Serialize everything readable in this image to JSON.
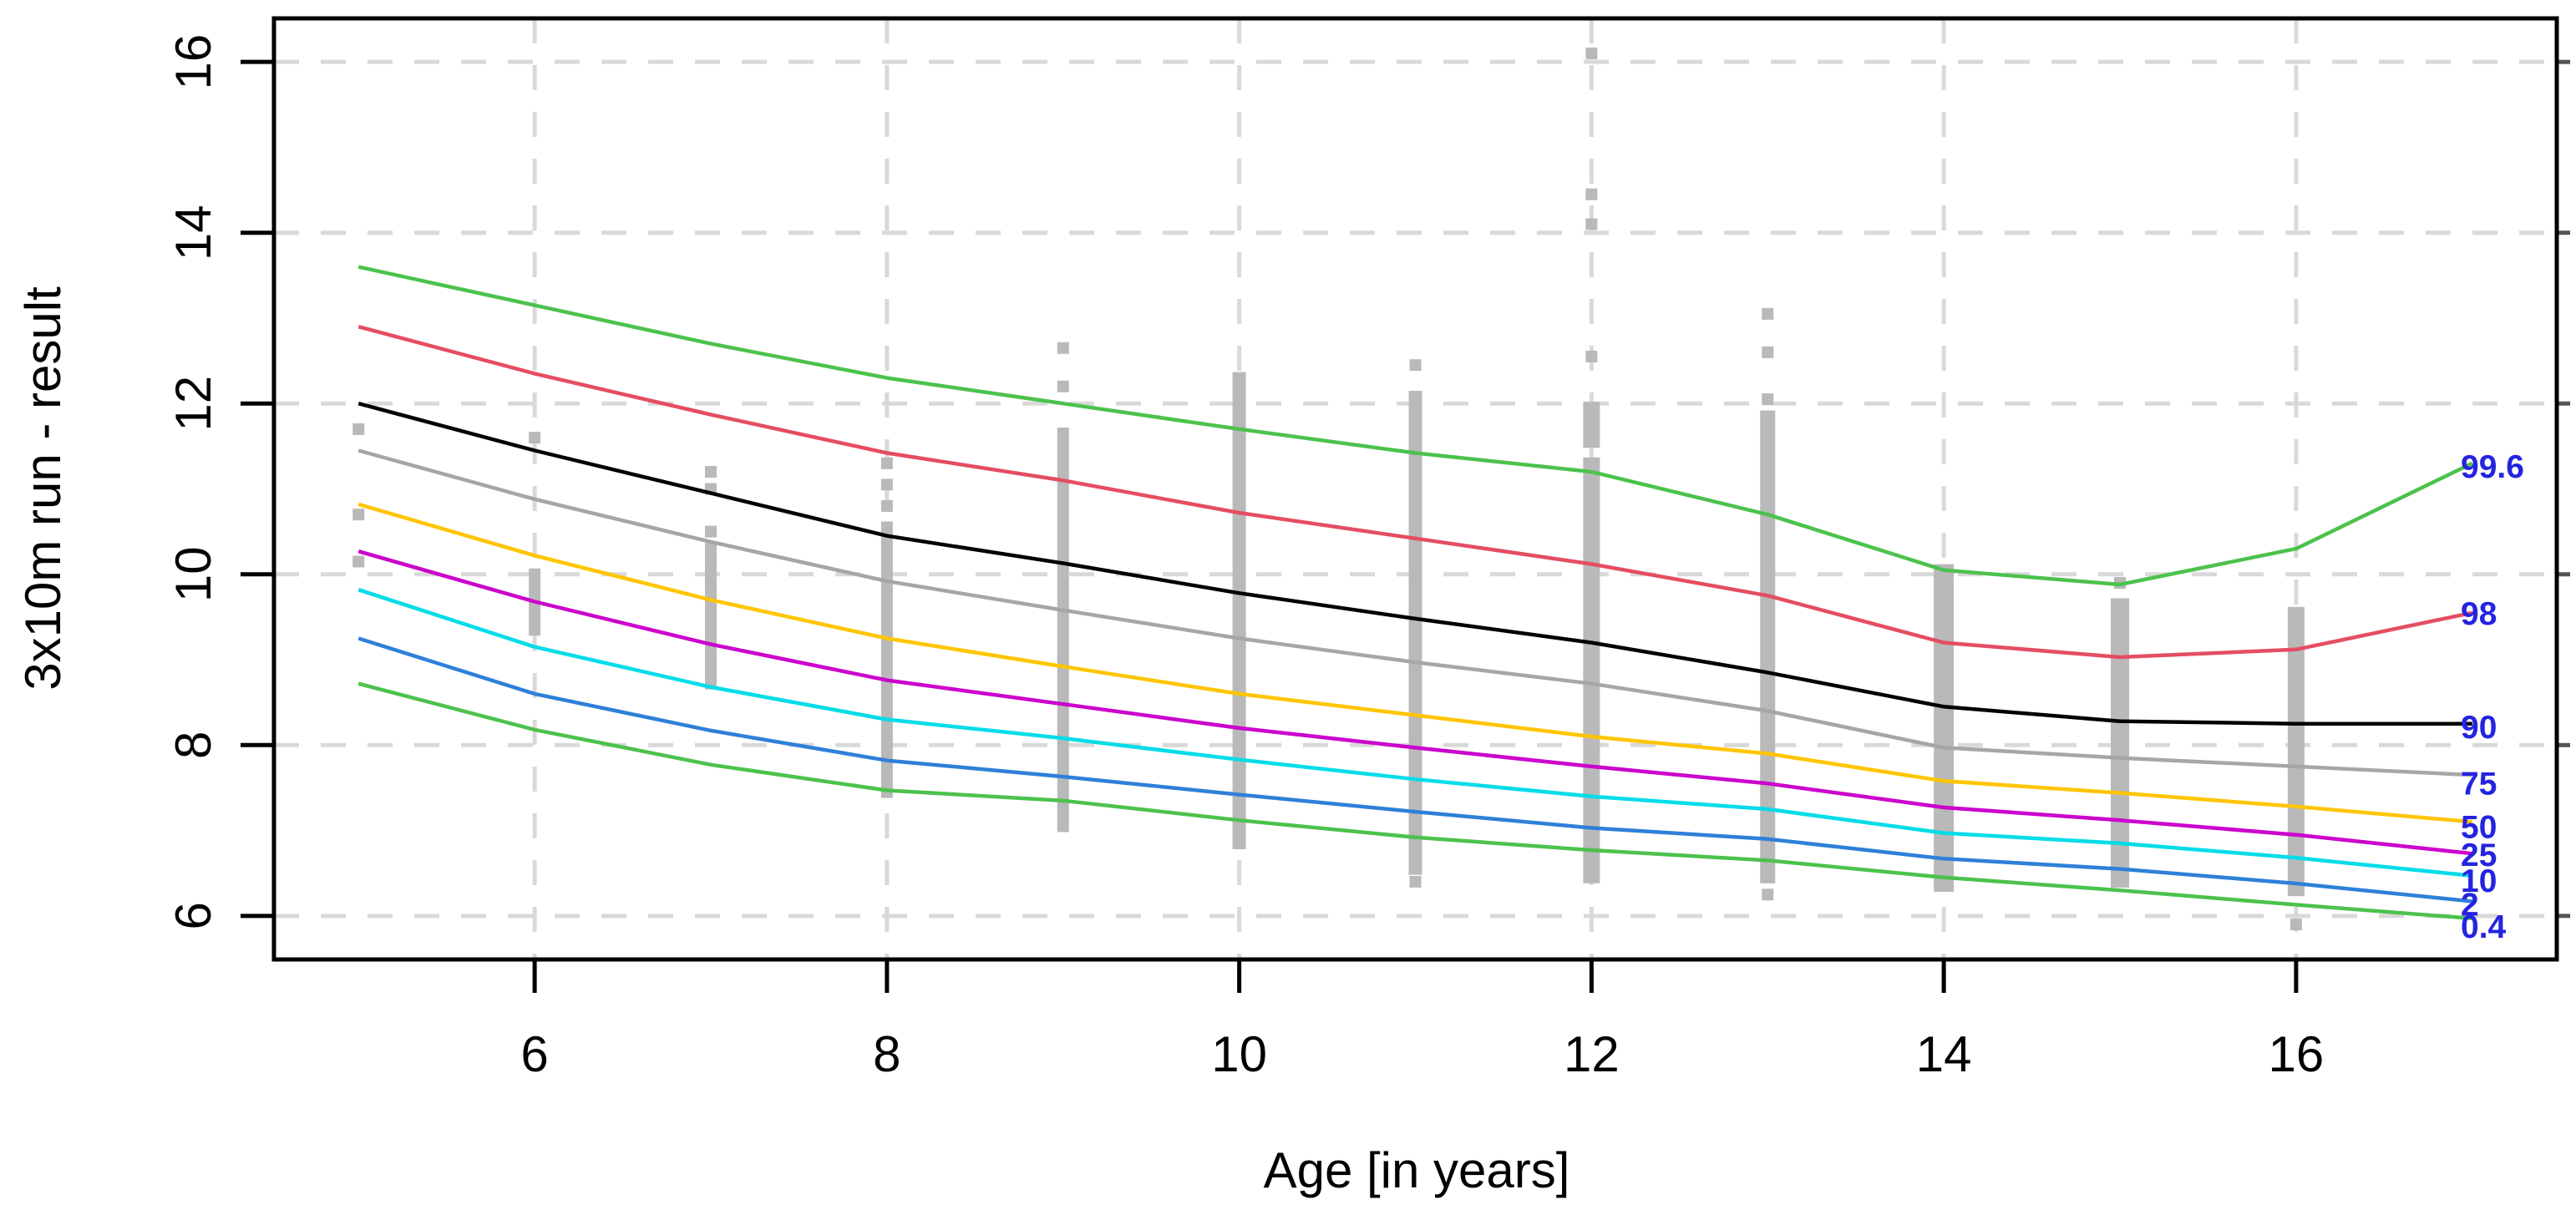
{
  "page": {
    "background": "#ffffff"
  },
  "chart_data": {
    "type": "line",
    "subtype": "growth-centile-curves-with-scatter",
    "title": "",
    "xlabel": "Age [in years]",
    "ylabel": "3x10m run - result",
    "x_ticks": [
      6,
      8,
      10,
      12,
      14,
      16
    ],
    "y_ticks": [
      6,
      8,
      10,
      12,
      14,
      16
    ],
    "xlim": [
      4.52,
      17.48
    ],
    "ylim": [
      5.49,
      16.51
    ],
    "grid": true,
    "grid_style": "dashed",
    "legend_position": "right-edge-inline-labels",
    "ages": [
      5,
      6,
      7,
      8,
      9,
      10,
      11,
      12,
      13,
      14,
      15,
      16,
      17
    ],
    "series": [
      {
        "name": "99.6",
        "color": "#4cc24c",
        "label_v": 11.27,
        "values": [
          13.6,
          13.15,
          12.7,
          12.3,
          12.0,
          11.7,
          11.42,
          11.2,
          10.7,
          10.05,
          9.88,
          10.3,
          11.3
        ]
      },
      {
        "name": "98",
        "color": "#e54d62",
        "label_v": 9.55,
        "values": [
          12.9,
          12.35,
          11.87,
          11.42,
          11.1,
          10.72,
          10.42,
          10.12,
          9.75,
          9.2,
          9.03,
          9.12,
          9.55
        ]
      },
      {
        "name": "90",
        "color": "#000000",
        "label_v": 8.22,
        "values": [
          12.0,
          11.45,
          10.95,
          10.45,
          10.13,
          9.78,
          9.48,
          9.2,
          8.85,
          8.45,
          8.28,
          8.25,
          8.25
        ]
      },
      {
        "name": "75",
        "color": "#a6a6a6",
        "label_v": 7.56,
        "values": [
          11.45,
          10.88,
          10.38,
          9.92,
          9.58,
          9.25,
          8.97,
          8.72,
          8.4,
          7.97,
          7.85,
          7.75,
          7.65
        ]
      },
      {
        "name": "50",
        "color": "#ffc500",
        "label_v": 7.05,
        "values": [
          10.82,
          10.22,
          9.7,
          9.25,
          8.92,
          8.6,
          8.35,
          8.1,
          7.9,
          7.58,
          7.44,
          7.28,
          7.1
        ]
      },
      {
        "name": "25",
        "color": "#cc00cc",
        "label_v": 6.72,
        "values": [
          10.27,
          9.68,
          9.18,
          8.76,
          8.48,
          8.2,
          7.97,
          7.75,
          7.55,
          7.27,
          7.12,
          6.95,
          6.73
        ]
      },
      {
        "name": "10",
        "color": "#00dce8",
        "label_v": 6.42,
        "values": [
          9.82,
          9.15,
          8.68,
          8.3,
          8.08,
          7.83,
          7.6,
          7.4,
          7.25,
          6.97,
          6.85,
          6.68,
          6.47
        ]
      },
      {
        "name": "2",
        "color": "#2e80d8",
        "label_v": 6.14,
        "values": [
          9.25,
          8.6,
          8.17,
          7.82,
          7.63,
          7.42,
          7.22,
          7.03,
          6.9,
          6.67,
          6.55,
          6.38,
          6.17
        ]
      },
      {
        "name": "0.4",
        "color": "#4cc24c",
        "label_v": 5.88,
        "values": [
          8.72,
          8.18,
          7.77,
          7.47,
          7.35,
          7.12,
          6.92,
          6.77,
          6.65,
          6.45,
          6.3,
          6.13,
          5.97
        ]
      }
    ],
    "centile_label_color": "#2424e0",
    "scatter": {
      "color": "#b9b9b9",
      "point_size": 14,
      "columns": [
        {
          "age": 5,
          "width": 14,
          "dense": [],
          "points": [
            10.15,
            10.7,
            11.7
          ]
        },
        {
          "age": 6,
          "width": 14,
          "dense": [
            [
              9.35,
              10.0
            ]
          ],
          "points": [
            11.6
          ]
        },
        {
          "age": 7,
          "width": 14,
          "dense": [
            [
              8.72,
              9.35
            ],
            [
              9.42,
              10.3
            ]
          ],
          "points": [
            10.5,
            11.0,
            11.2
          ]
        },
        {
          "age": 8,
          "width": 14,
          "dense": [
            [
              7.45,
              10.55
            ]
          ],
          "points": [
            10.8,
            11.05,
            11.3
          ]
        },
        {
          "age": 9,
          "width": 14,
          "dense": [
            [
              7.05,
              11.65
            ]
          ],
          "points": [
            12.2,
            12.65
          ]
        },
        {
          "age": 10,
          "width": 16,
          "dense": [
            [
              6.85,
              12.3
            ]
          ],
          "points": []
        },
        {
          "age": 11,
          "width": 16,
          "dense": [
            [
              6.55,
              12.08
            ]
          ],
          "points": [
            12.45,
            6.4
          ]
        },
        {
          "age": 12,
          "width": 20,
          "dense": [
            [
              6.45,
              11.3
            ],
            [
              11.55,
              11.95
            ]
          ],
          "points": [
            12.55,
            14.1,
            14.45,
            16.1
          ]
        },
        {
          "age": 13,
          "width": 18,
          "dense": [
            [
              6.45,
              11.85
            ]
          ],
          "points": [
            12.05,
            12.6,
            13.05,
            6.25
          ]
        },
        {
          "age": 14,
          "width": 24,
          "dense": [
            [
              6.35,
              10.05
            ]
          ],
          "points": []
        },
        {
          "age": 15,
          "width": 22,
          "dense": [
            [
              6.4,
              9.65
            ]
          ],
          "points": [
            9.9
          ]
        },
        {
          "age": 16,
          "width": 20,
          "dense": [
            [
              6.3,
              9.55
            ]
          ],
          "points": [
            5.9
          ]
        }
      ]
    },
    "colors": {
      "axis": "#000000",
      "grid": "#d9d9d9",
      "tick_label": "#000000"
    }
  }
}
